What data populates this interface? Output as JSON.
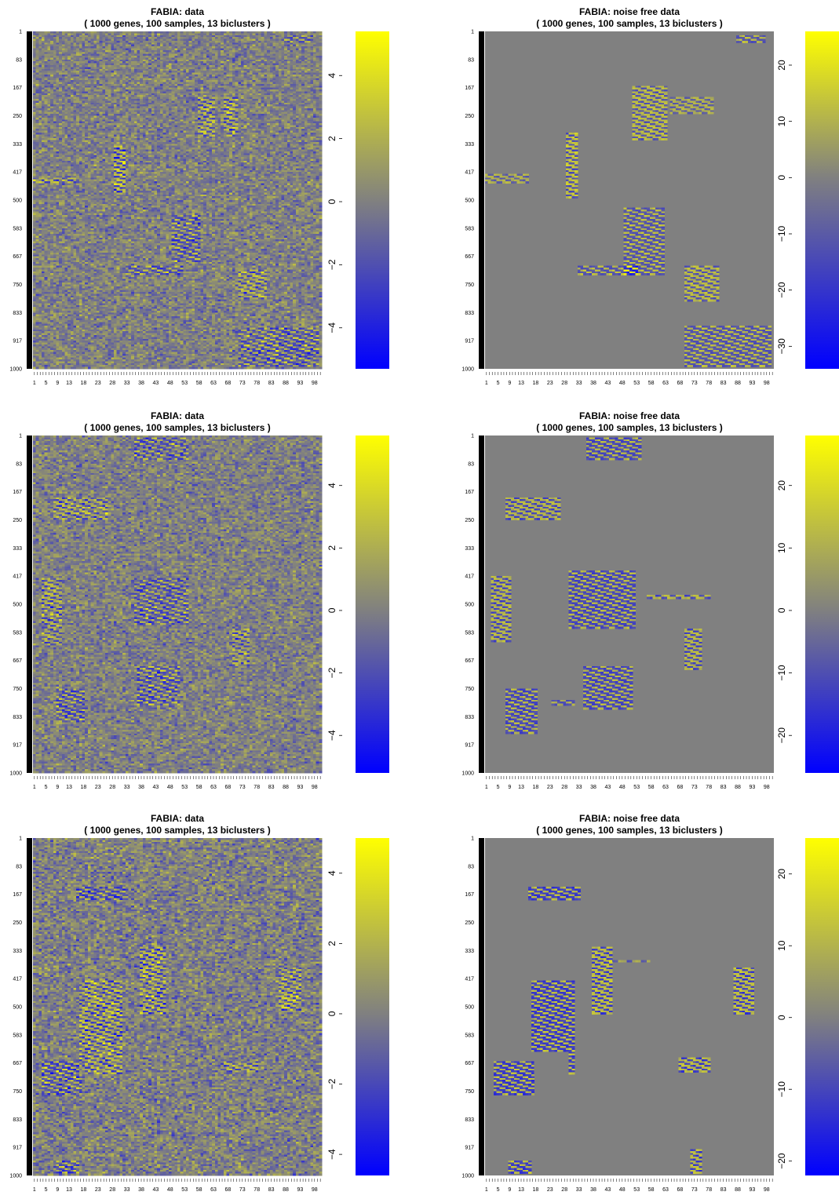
{
  "colors": {
    "low": "#0000ff",
    "mid": "#808080",
    "high": "#ffff00",
    "gene_bar": "#000000",
    "background": "#ffffff"
  },
  "chart_data": [
    {
      "type": "heatmap",
      "title": "FABIA: data",
      "subtitle": "( 1000  genes,  100  samples,  13  biclusters )",
      "y_tick_labels": [
        "1",
        "83",
        "167",
        "250",
        "333",
        "417",
        "500",
        "583",
        "667",
        "750",
        "833",
        "917",
        "1000"
      ],
      "x_tick_labels": [
        "1",
        "5",
        "9",
        "13",
        "18",
        "23",
        "28",
        "33",
        "38",
        "43",
        "48",
        "53",
        "58",
        "63",
        "68",
        "73",
        "78",
        "83",
        "88",
        "93",
        "98"
      ],
      "colorbar_ticks": [
        -4,
        -2,
        0,
        2,
        4
      ],
      "value_range": [
        -5.3,
        5.4
      ],
      "noise": true,
      "background_value": 0,
      "biclusters": [
        {
          "rows": [
            10,
            30
          ],
          "cols": [
            88,
            97
          ],
          "value": -2
        },
        {
          "rows": [
            190,
            310
          ],
          "cols": [
            58,
            63
          ],
          "value": 2
        },
        {
          "rows": [
            190,
            310
          ],
          "cols": [
            67,
            71
          ],
          "value": 2
        },
        {
          "rows": [
            335,
            475
          ],
          "cols": [
            29,
            32
          ],
          "value": 3
        },
        {
          "rows": [
            430,
            450
          ],
          "cols": [
            1,
            15
          ],
          "value": 2
        },
        {
          "rows": [
            540,
            680
          ],
          "cols": [
            49,
            58
          ],
          "value": -2
        },
        {
          "rows": [
            690,
            720
          ],
          "cols": [
            33,
            52
          ],
          "value": -2
        },
        {
          "rows": [
            705,
            790
          ],
          "cols": [
            72,
            81
          ],
          "value": 2
        },
        {
          "rows": [
            875,
            990
          ],
          "cols": [
            72,
            99
          ],
          "value": -2
        }
      ]
    },
    {
      "type": "heatmap",
      "title": "FABIA: noise free data",
      "subtitle": "( 1000  genes,  100  samples,  13  biclusters )",
      "y_tick_labels": [
        "1",
        "83",
        "167",
        "250",
        "333",
        "417",
        "500",
        "583",
        "667",
        "750",
        "833",
        "917",
        "1000"
      ],
      "x_tick_labels": [
        "1",
        "5",
        "9",
        "13",
        "18",
        "23",
        "28",
        "33",
        "38",
        "43",
        "48",
        "53",
        "58",
        "63",
        "68",
        "73",
        "78",
        "83",
        "88",
        "93",
        "98"
      ],
      "colorbar_ticks": [
        -30,
        -20,
        -10,
        0,
        10,
        20
      ],
      "value_range": [
        -34,
        26
      ],
      "noise": false,
      "background_value": 0,
      "biclusters": [
        {
          "rows": [
            10,
            30
          ],
          "cols": [
            88,
            97
          ],
          "value": -12
        },
        {
          "rows": [
            160,
            320
          ],
          "cols": [
            52,
            63
          ],
          "value": 12
        },
        {
          "rows": [
            190,
            240
          ],
          "cols": [
            65,
            79
          ],
          "value": 10
        },
        {
          "rows": [
            300,
            490
          ],
          "cols": [
            29,
            32
          ],
          "value": 14
        },
        {
          "rows": [
            420,
            450
          ],
          "cols": [
            1,
            15
          ],
          "value": 10
        },
        {
          "rows": [
            520,
            720
          ],
          "cols": [
            49,
            62
          ],
          "value": -12
        },
        {
          "rows": [
            690,
            720
          ],
          "cols": [
            33,
            53
          ],
          "value": -12
        },
        {
          "rows": [
            690,
            800
          ],
          "cols": [
            70,
            81
          ],
          "value": 12
        },
        {
          "rows": [
            870,
            990
          ],
          "cols": [
            70,
            99
          ],
          "value": -12
        }
      ]
    },
    {
      "type": "heatmap",
      "title": "FABIA: data",
      "subtitle": "( 1000  genes,  100  samples,  13  biclusters )",
      "y_tick_labels": [
        "1",
        "83",
        "167",
        "250",
        "333",
        "417",
        "500",
        "583",
        "667",
        "750",
        "833",
        "917",
        "1000"
      ],
      "x_tick_labels": [
        "1",
        "5",
        "9",
        "13",
        "18",
        "23",
        "28",
        "33",
        "38",
        "43",
        "48",
        "53",
        "58",
        "63",
        "68",
        "73",
        "78",
        "83",
        "88",
        "93",
        "98"
      ],
      "colorbar_ticks": [
        -4,
        -2,
        0,
        2,
        4
      ],
      "value_range": [
        -5.2,
        5.6
      ],
      "noise": true,
      "background_value": 0,
      "biclusters": [
        {
          "rows": [
            5,
            70
          ],
          "cols": [
            36,
            54
          ],
          "value": -2
        },
        {
          "rows": [
            180,
            250
          ],
          "cols": [
            8,
            26
          ],
          "value": 2
        },
        {
          "rows": [
            420,
            560
          ],
          "cols": [
            36,
            54
          ],
          "value": -2
        },
        {
          "rows": [
            420,
            620
          ],
          "cols": [
            4,
            10
          ],
          "value": 2
        },
        {
          "rows": [
            570,
            680
          ],
          "cols": [
            70,
            75
          ],
          "value": 2
        },
        {
          "rows": [
            680,
            800
          ],
          "cols": [
            37,
            51
          ],
          "value": -2
        },
        {
          "rows": [
            750,
            850
          ],
          "cols": [
            9,
            18
          ],
          "value": -2
        }
      ]
    },
    {
      "type": "heatmap",
      "title": "FABIA: noise free data",
      "subtitle": "( 1000  genes,  100  samples,  13  biclusters )",
      "y_tick_labels": [
        "1",
        "83",
        "167",
        "250",
        "333",
        "417",
        "500",
        "583",
        "667",
        "750",
        "833",
        "917",
        "1000"
      ],
      "x_tick_labels": [
        "1",
        "5",
        "9",
        "13",
        "18",
        "23",
        "28",
        "33",
        "38",
        "43",
        "48",
        "53",
        "58",
        "63",
        "68",
        "73",
        "78",
        "83",
        "88",
        "93",
        "98"
      ],
      "colorbar_ticks": [
        -20,
        -10,
        0,
        10,
        20
      ],
      "value_range": [
        -26,
        28
      ],
      "noise": false,
      "background_value": 0,
      "biclusters": [
        {
          "rows": [
            5,
            70
          ],
          "cols": [
            36,
            54
          ],
          "value": -12
        },
        {
          "rows": [
            180,
            250
          ],
          "cols": [
            8,
            26
          ],
          "value": 12
        },
        {
          "rows": [
            400,
            570
          ],
          "cols": [
            30,
            52
          ],
          "value": -12
        },
        {
          "rows": [
            415,
            610
          ],
          "cols": [
            3,
            9
          ],
          "value": 12
        },
        {
          "rows": [
            470,
            480
          ],
          "cols": [
            57,
            78
          ],
          "value": 12
        },
        {
          "rows": [
            570,
            690
          ],
          "cols": [
            70,
            75
          ],
          "value": 12
        },
        {
          "rows": [
            680,
            810
          ],
          "cols": [
            35,
            51
          ],
          "value": -12
        },
        {
          "rows": [
            750,
            880
          ],
          "cols": [
            8,
            18
          ],
          "value": -12
        },
        {
          "rows": [
            780,
            800
          ],
          "cols": [
            24,
            31
          ],
          "value": -10
        }
      ]
    },
    {
      "type": "heatmap",
      "title": "FABIA: data",
      "subtitle": "( 1000  genes,  100  samples,  13  biclusters )",
      "y_tick_labels": [
        "1",
        "83",
        "167",
        "250",
        "333",
        "417",
        "500",
        "583",
        "667",
        "750",
        "833",
        "917",
        "1000"
      ],
      "x_tick_labels": [
        "1",
        "5",
        "9",
        "13",
        "18",
        "23",
        "28",
        "33",
        "38",
        "43",
        "48",
        "53",
        "58",
        "63",
        "68",
        "73",
        "78",
        "83",
        "88",
        "93",
        "98"
      ],
      "colorbar_ticks": [
        -4,
        -2,
        0,
        2,
        4
      ],
      "value_range": [
        -4.6,
        5.0
      ],
      "noise": true,
      "background_value": 0,
      "biclusters": [
        {
          "rows": [
            140,
            180
          ],
          "cols": [
            16,
            33
          ],
          "value": -2
        },
        {
          "rows": [
            320,
            520
          ],
          "cols": [
            38,
            46
          ],
          "value": 2
        },
        {
          "rows": [
            420,
            700
          ],
          "cols": [
            17,
            31
          ],
          "value": 2
        },
        {
          "rows": [
            380,
            510
          ],
          "cols": [
            86,
            93
          ],
          "value": 2
        },
        {
          "rows": [
            660,
            760
          ],
          "cols": [
            4,
            17
          ],
          "value": -2
        },
        {
          "rows": [
            660,
            690
          ],
          "cols": [
            67,
            78
          ],
          "value": 2
        },
        {
          "rows": [
            955,
            995
          ],
          "cols": [
            8,
            16
          ],
          "value": -2
        }
      ]
    },
    {
      "type": "heatmap",
      "title": "FABIA: noise free data",
      "subtitle": "( 1000  genes,  100  samples,  13  biclusters )",
      "y_tick_labels": [
        "1",
        "83",
        "167",
        "250",
        "333",
        "417",
        "500",
        "583",
        "667",
        "750",
        "833",
        "917",
        "1000"
      ],
      "x_tick_labels": [
        "1",
        "5",
        "9",
        "13",
        "18",
        "23",
        "28",
        "33",
        "38",
        "43",
        "48",
        "53",
        "58",
        "63",
        "68",
        "73",
        "78",
        "83",
        "88",
        "93",
        "98"
      ],
      "colorbar_ticks": [
        -20,
        -10,
        0,
        10,
        20
      ],
      "value_range": [
        -22,
        25
      ],
      "noise": false,
      "background_value": 0,
      "biclusters": [
        {
          "rows": [
            140,
            180
          ],
          "cols": [
            16,
            33
          ],
          "value": -12
        },
        {
          "rows": [
            320,
            520
          ],
          "cols": [
            38,
            44
          ],
          "value": 12
        },
        {
          "rows": [
            360,
            365
          ],
          "cols": [
            44,
            57
          ],
          "value": 8
        },
        {
          "rows": [
            420,
            700
          ],
          "cols": [
            17,
            31
          ],
          "value": -12
        },
        {
          "rows": [
            630,
            700
          ],
          "cols": [
            17,
            29
          ],
          "value": 12
        },
        {
          "rows": [
            380,
            520
          ],
          "cols": [
            87,
            93
          ],
          "value": 12
        },
        {
          "rows": [
            660,
            760
          ],
          "cols": [
            4,
            17
          ],
          "value": -12
        },
        {
          "rows": [
            650,
            690
          ],
          "cols": [
            68,
            78
          ],
          "value": 12
        },
        {
          "rows": [
            920,
            995
          ],
          "cols": [
            72,
            75
          ],
          "value": 12
        },
        {
          "rows": [
            955,
            995
          ],
          "cols": [
            9,
            16
          ],
          "value": -12
        }
      ]
    }
  ]
}
